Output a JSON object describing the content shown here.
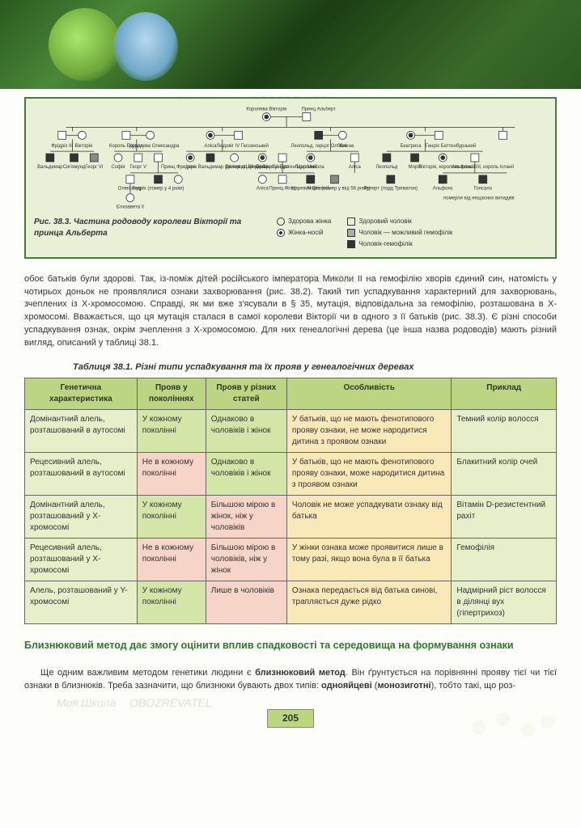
{
  "hero": {},
  "pedigree": {
    "top1": "Королева Вікторія",
    "top2": "Принц Альберт",
    "names": [
      "Фрідріх III",
      "Вікторія",
      "Король Едуард",
      "Королева Олександра",
      "Аліса",
      "Людовіг IV Гессенський",
      "Леопольд, герцог Олбані",
      "Єлена",
      "Беатриса",
      "Генріх Баттенбурзький",
      "Вальдемар",
      "Сигізмунд",
      "Софія",
      "Георг V",
      "Ірен",
      "Принц Фредерік Вальдемар (дожив до 56 років)",
      "Вікторія",
      "Цариця Олександра",
      "Принц Луї Баттенбергзький",
      "Цар Микола",
      "Аліса",
      "Олександр",
      "Леопольд",
      "Моріс",
      "Вікторія, королева Іспанії",
      "Альфонс XIII, король Іспанії",
      "Олександр",
      "Єлизавета II",
      "Генріх (помер у 4 роки)",
      "Аліса",
      "Принц Філіп",
      "Царевич Олексій",
      "Моріс (помер у віці 56 років)",
      "Руперт (лорд Трематон)",
      "Альфонс",
      "Гонсало",
      "померли від нещасних випадків",
      "Георг VI"
    ],
    "caption": "Рис. 38.3. Частина родоводу королеви Вікторії та принца Альберта",
    "legend": {
      "healthy_f": "Здорова жінка",
      "carrier_f": "Жінка-носій",
      "healthy_m": "Здоровий чоловік",
      "possible_m": "Чоловік — можливий гемофілік",
      "hemo_m": "Чоловік-гемофілік"
    }
  },
  "body1": "обоє батьків були здорові. Так, із-поміж дітей російського імператора Миколи II на гемофілію хворів єдиний син, натомість у чотирьох доньок не проявлялися ознаки захворювання (рис. 38.2). Такий тип успадкування характерний для захворювань, зчеплених із X-хромосомою. Справді, як ми вже з'ясували в § 35, мутація, відповідальна за гемофілію, розташована в X-хромосомі. Вважається, що ця мутація сталася в самої королеви Вікторії чи в одного з її батьків (рис. 38.3). Є різні способи успадкування ознак, окрім зчеплення з X-хромосомою. Для них генеалогічні дерева (це інша назва родоводів) мають різний вигляд, описаний у таблиці 38.1.",
  "table": {
    "caption": "Таблиця 38.1. Різні типи успадкування та їх прояв у генеалогічних деревах",
    "headers": [
      "Генетична характеристика",
      "Прояв у поколіннях",
      "Прояв у різних статей",
      "Особливість",
      "Приклад"
    ],
    "rows": [
      {
        "c1": "Домінантний алель, розташований в аутосомі",
        "c2": "У кожному поколінні",
        "c2cls": "c2g",
        "c3": "Однаково в чоловіків і жінок",
        "c3cls": "c3g",
        "c4": "У батьків, що не мають фенотипового прояву ознаки, не може народитися дитина з проявом ознаки",
        "c5": "Темний колір волосся"
      },
      {
        "c1": "Рецесивний алель, розташований в аутосомі",
        "c2": "Не в кожному поколінні",
        "c2cls": "c2p",
        "c3": "Однаково в чоловіків і жінок",
        "c3cls": "c3g",
        "c4": "У батьків, що не мають фенотипового прояву ознаки, може народитися дитина з проявом ознаки",
        "c5": "Блакитний колір очей"
      },
      {
        "c1": "Домінантний алель, розташований у X-хромосомі",
        "c2": "У кожному поколінні",
        "c2cls": "c2g",
        "c3": "Більшою мірою в жінок, ніж у чоловіків",
        "c3cls": "c3p",
        "c4": "Чоловік не може успадкувати ознаку від батька",
        "c5": "Вітамін D-резистентний рахіт"
      },
      {
        "c1": "Рецесивний алель, розташований у X-хромосомі",
        "c2": "Не в кожному поколінні",
        "c2cls": "c2p",
        "c3": "Більшою мірою в чоловіків, ніж у жінок",
        "c3cls": "c3p",
        "c4": "У жінки ознака може проявитися лише в тому разі, якщо вона була в її батька",
        "c5": "Гемофілія"
      },
      {
        "c1": "Алель, розташований у Y-хромосомі",
        "c2": "У кожному поколінні",
        "c2cls": "c2g",
        "c3": "Лише в чоловіків",
        "c3cls": "c3p",
        "c4": "Ознака передається від батька синові, трапляється дуже рідко",
        "c5": "Надмірний ріст волосся в ділянці вух (гіпертрихоз)"
      }
    ],
    "colors": {
      "header_bg": "#bcd583",
      "col1_bg": "#e6efc9",
      "green_bg": "#d4e5a8",
      "pink_bg": "#f6d4c8",
      "col4_bg": "#f9e8b8",
      "col5_bg": "#e6efc9",
      "border": "#666666"
    }
  },
  "section_title": "Близнюковий метод дає змогу оцінити вплив спадковості та середовища на формування ознаки",
  "body2_prefix": "Ще одним важливим методом генетики людини є ",
  "body2_bold1": "близнюковий метод",
  "body2_mid": ". Він ґрунтується на порівнянні прояву тієї чи тієї ознаки в близнюків. Треба зазначити, що близнюки бувають двох типів: ",
  "body2_bold2": "однояйцеві",
  "body2_par": " (",
  "body2_bold3": "монозиготні",
  "body2_end": "), тобто такі, що роз-",
  "page_number": "205",
  "watermarks": [
    "Моя Школа",
    "OBOZREVATEL"
  ]
}
